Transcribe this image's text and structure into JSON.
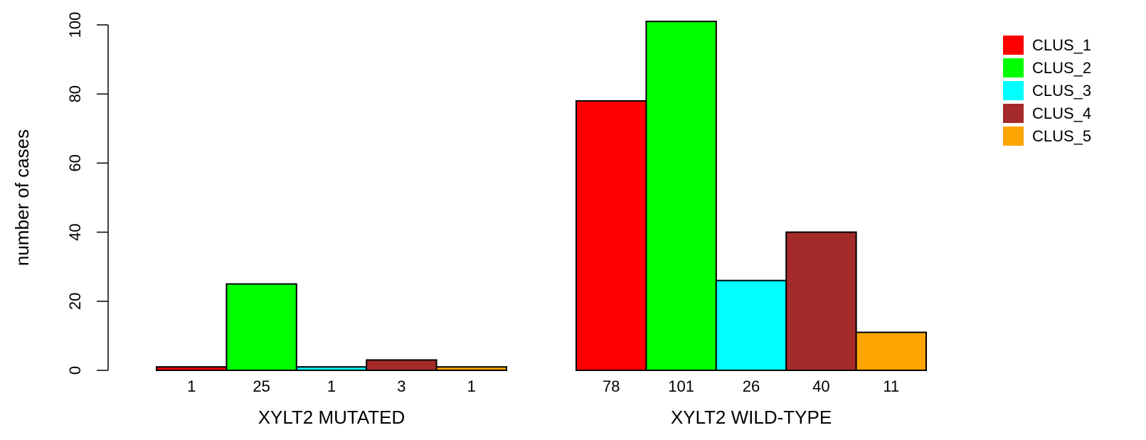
{
  "chart_data": {
    "type": "bar",
    "title": "",
    "xlabel": "",
    "ylabel": "number of cases",
    "ylim": [
      0,
      100
    ],
    "yticks": [
      0,
      20,
      40,
      60,
      80,
      100
    ],
    "groups": [
      {
        "label": "XYLT2 MUTATED",
        "values": [
          1,
          25,
          1,
          3,
          1
        ]
      },
      {
        "label": "XYLT2 WILD-TYPE",
        "values": [
          78,
          101,
          26,
          40,
          11
        ]
      }
    ],
    "series": [
      {
        "name": "CLUS_1",
        "color": "#ff0000"
      },
      {
        "name": "CLUS_2",
        "color": "#00ff00"
      },
      {
        "name": "CLUS_3",
        "color": "#00ffff"
      },
      {
        "name": "CLUS_4",
        "color": "#a52a2a"
      },
      {
        "name": "CLUS_5",
        "color": "#ffa500"
      }
    ],
    "legend_position": "top-right",
    "grid": false
  }
}
